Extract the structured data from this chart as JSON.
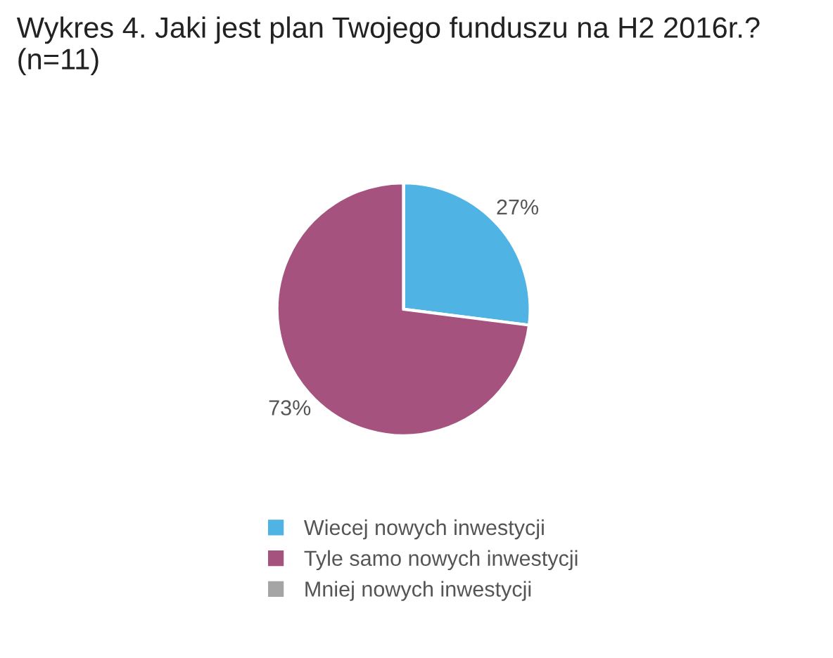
{
  "chart_data": {
    "type": "pie",
    "title": "Wykres 4. Jaki jest plan Twojego funduszu na H2 2016r.? (n=11)",
    "categories": [
      "Wiecej nowych inwestycji",
      "Tyle samo nowych inwestycji",
      "Mniej nowych inwestycji"
    ],
    "values": [
      27,
      73,
      0
    ],
    "value_labels": [
      "27%",
      "73%",
      null
    ],
    "colors": [
      "#4fb3e3",
      "#a5527f",
      "#a5a5a5"
    ],
    "legend": "bottom"
  }
}
